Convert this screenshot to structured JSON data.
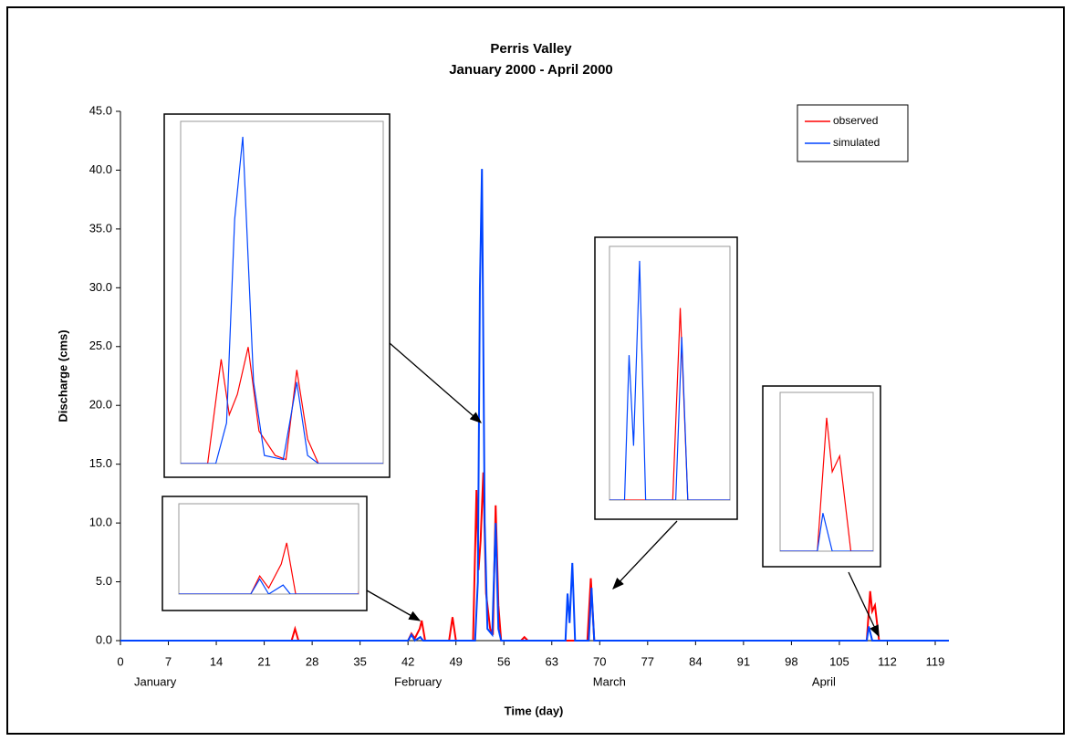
{
  "chart_data": {
    "type": "line",
    "title": "Perris Valley",
    "subtitle": "January 2000 - April 2000",
    "x_label": "Time (day)",
    "y_label": "Discharge (cms)",
    "xlim": [
      0,
      121
    ],
    "xticks": [
      0,
      7,
      14,
      21,
      28,
      35,
      42,
      49,
      56,
      63,
      70,
      77,
      84,
      91,
      98,
      105,
      112,
      119
    ],
    "ylim": [
      0,
      45
    ],
    "yticks": [
      {
        "value": 0,
        "label": "0.0"
      },
      {
        "value": 5,
        "label": "5.0"
      },
      {
        "value": 10,
        "label": "10.0"
      },
      {
        "value": 15,
        "label": "15.0"
      },
      {
        "value": 20,
        "label": "20.0"
      },
      {
        "value": 25,
        "label": "25.0"
      },
      {
        "value": 30,
        "label": "30.0"
      },
      {
        "value": 35,
        "label": "35.0"
      },
      {
        "value": 40,
        "label": "40.0"
      },
      {
        "value": 45,
        "label": "45.0"
      }
    ],
    "month_labels": [
      {
        "value": 2,
        "label": "January"
      },
      {
        "value": 40,
        "label": "February"
      },
      {
        "value": 69,
        "label": "March"
      },
      {
        "value": 101,
        "label": "April"
      }
    ],
    "legend": "upper right",
    "series": [
      {
        "name": "observed",
        "color": "#ff0000",
        "x": [
          0,
          25,
          25.5,
          26,
          42,
          42.5,
          43,
          43.7,
          44,
          44.5,
          48,
          48.5,
          49,
          51.5,
          52,
          52.3,
          52.6,
          53,
          53.4,
          54,
          54.4,
          54.8,
          55.2,
          55.6,
          58.5,
          59,
          59.5,
          68.2,
          68.7,
          69.2,
          109,
          109.5,
          109.8,
          110.2,
          110.8,
          121
        ],
        "values": [
          0,
          0,
          1.0,
          0,
          0,
          0.6,
          0.2,
          1.0,
          1.7,
          0,
          0,
          2.0,
          0,
          0,
          12.8,
          6,
          8.5,
          14.3,
          4,
          1,
          0.5,
          11.5,
          3,
          0,
          0,
          0.3,
          0,
          0,
          5.3,
          0,
          0,
          4.2,
          2.5,
          3.0,
          0,
          0
        ]
      },
      {
        "name": "simulated",
        "color": "#0044ff",
        "x": [
          0,
          42,
          42.5,
          43,
          43.8,
          44.2,
          51.8,
          52.2,
          52.5,
          52.8,
          53.2,
          53.6,
          54.3,
          54.8,
          55.2,
          55.6,
          65,
          65.3,
          65.6,
          66,
          66.4,
          68.4,
          68.8,
          69.2,
          109,
          109.3,
          109.8,
          121
        ],
        "values": [
          0,
          0,
          0.5,
          0,
          0.3,
          0,
          0,
          5,
          30,
          40.1,
          10,
          1,
          0.5,
          10,
          1,
          0,
          0,
          4.0,
          1.5,
          6.6,
          0,
          0,
          4.5,
          0,
          0,
          1.2,
          0,
          0
        ]
      }
    ]
  }
}
